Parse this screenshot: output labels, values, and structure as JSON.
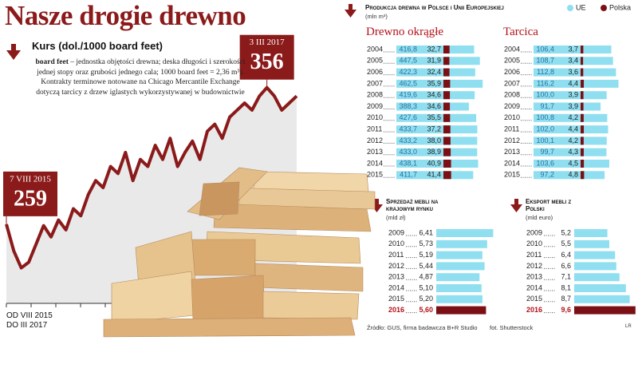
{
  "title": "Nasze drogie drewno",
  "chart_data": [
    {
      "type": "line",
      "title": "Kurs (dol./1000 board feet)",
      "note_term": "board feet",
      "note": "– jednostka objętości drewna; deska długości i szerokości jednej stopy oraz grubości jednego cala; 1000 board feet = 2,36 m³). Kontrakty terminowe notowane na Chicago Mercantile Exchange dotyczą tarcicy z drzew iglastych wykorzystywanej w budownictwie",
      "xlabel": [
        "OD VIII 2015",
        "DO III 2017"
      ],
      "values": [
        259,
        240,
        228,
        232,
        245,
        258,
        250,
        262,
        255,
        270,
        265,
        280,
        290,
        285,
        300,
        295,
        310,
        290,
        305,
        300,
        315,
        305,
        320,
        300,
        310,
        318,
        305,
        325,
        330,
        320,
        335,
        340,
        345,
        340,
        350,
        356,
        350,
        340,
        345,
        350
      ],
      "color": "#8b1a1a",
      "ylim": [
        200,
        370
      ],
      "annotations": [
        {
          "label": "7 VIII 2015",
          "value": 259
        },
        {
          "label": "3 III 2017",
          "value": 356
        }
      ]
    },
    {
      "type": "hbar",
      "title": "Drewno okrągłe",
      "categories": [
        "2004",
        "2005",
        "2006",
        "2007",
        "2008",
        "2009",
        "2010",
        "2011",
        "2012",
        "2013",
        "2014",
        "2015"
      ],
      "series": [
        {
          "name": "UE",
          "color": "#8fdff0",
          "values": [
            416.8,
            447.5,
            422.3,
            462.5,
            419.6,
            388.3,
            427.6,
            433.7,
            433.2,
            433.0,
            438.1,
            411.7
          ],
          "value_labels": [
            "416,8",
            "447,5",
            "422,3",
            "462,5",
            "419,6",
            "388,3",
            "427,6",
            "433,7",
            "433,2",
            "433,0",
            "438,1",
            "411,7"
          ]
        },
        {
          "name": "Polska",
          "color": "#7a0f14",
          "values": [
            32.7,
            31.9,
            32.4,
            35.9,
            34.6,
            34.6,
            35.5,
            37.2,
            38.0,
            38.9,
            40.9,
            41.4
          ],
          "value_labels": [
            "32,7",
            "31,9",
            "32,4",
            "35,9",
            "34,6",
            "34,6",
            "35,5",
            "37,2",
            "38,0",
            "38,9",
            "40,9",
            "41,4"
          ]
        }
      ],
      "xlim": [
        0,
        470
      ]
    },
    {
      "type": "hbar",
      "title": "Tarcica",
      "categories": [
        "2004",
        "2005",
        "2006",
        "2007",
        "2008",
        "2009",
        "2010",
        "2011",
        "2012",
        "2013",
        "2014",
        "2015"
      ],
      "series": [
        {
          "name": "UE",
          "color": "#8fdff0",
          "values": [
            106.4,
            108.7,
            112.8,
            116.2,
            100.0,
            91.7,
            100.8,
            102.0,
            100.1,
            99.7,
            103.6,
            97.2
          ],
          "value_labels": [
            "106,4",
            "108,7",
            "112,8",
            "116,2",
            "100,0",
            "91,7",
            "100,8",
            "102,0",
            "100,1",
            "99,7",
            "103,6",
            "97,2"
          ]
        },
        {
          "name": "Polska",
          "color": "#7a0f14",
          "values": [
            3.7,
            3.4,
            3.6,
            4.4,
            3.9,
            3.9,
            4.2,
            4.4,
            4.2,
            4.3,
            4.5,
            4.8
          ],
          "value_labels": [
            "3,7",
            "3,4",
            "3,6",
            "4,4",
            "3,9",
            "3,9",
            "4,2",
            "4,4",
            "4,2",
            "4,3",
            "4,5",
            "4,8"
          ]
        }
      ],
      "xlim": [
        0,
        120
      ]
    },
    {
      "type": "hbar",
      "title": "Sprzedaż mebli na krajowym rynku",
      "subtitle": "(mld zł)",
      "categories": [
        "2009",
        "2010",
        "2011",
        "2012",
        "2013",
        "2014",
        "2015",
        "2016"
      ],
      "values": [
        6.41,
        5.73,
        5.19,
        5.44,
        4.87,
        5.1,
        5.2,
        5.6
      ],
      "value_labels": [
        "6,41",
        "5,73",
        "5,19",
        "5,44",
        "4,87",
        "5,10",
        "5,20",
        "5,60"
      ],
      "color": "#8fdff0",
      "colors": [
        "#8fdff0",
        "#8fdff0",
        "#8fdff0",
        "#8fdff0",
        "#8fdff0",
        "#8fdff0",
        "#8fdff0",
        "#7a0f14"
      ],
      "xlim": [
        0,
        7
      ]
    },
    {
      "type": "hbar",
      "title": "Eksport mebli z Polski",
      "subtitle": "(mld euro)",
      "categories": [
        "2009",
        "2010",
        "2011",
        "2012",
        "2013",
        "2014",
        "2015",
        "2016"
      ],
      "values": [
        5.2,
        5.5,
        6.4,
        6.6,
        7.1,
        8.1,
        8.7,
        9.6
      ],
      "value_labels": [
        "5,2",
        "5,5",
        "6,4",
        "6,6",
        "7,1",
        "8,1",
        "8,7",
        "9,6"
      ],
      "color": "#8fdff0",
      "colors": [
        "#8fdff0",
        "#8fdff0",
        "#8fdff0",
        "#8fdff0",
        "#8fdff0",
        "#8fdff0",
        "#8fdff0",
        "#7a0f14"
      ],
      "xlim": [
        0,
        10
      ]
    }
  ],
  "production": {
    "title": "Produkcja drewna w Polsce i Unii Europejskiej",
    "unit": "(mln m³)"
  },
  "footer": {
    "source": "Źródło: GUS, firma badawcza B+R Studio",
    "photo": "fot. Shutterstock",
    "author": "LR"
  }
}
